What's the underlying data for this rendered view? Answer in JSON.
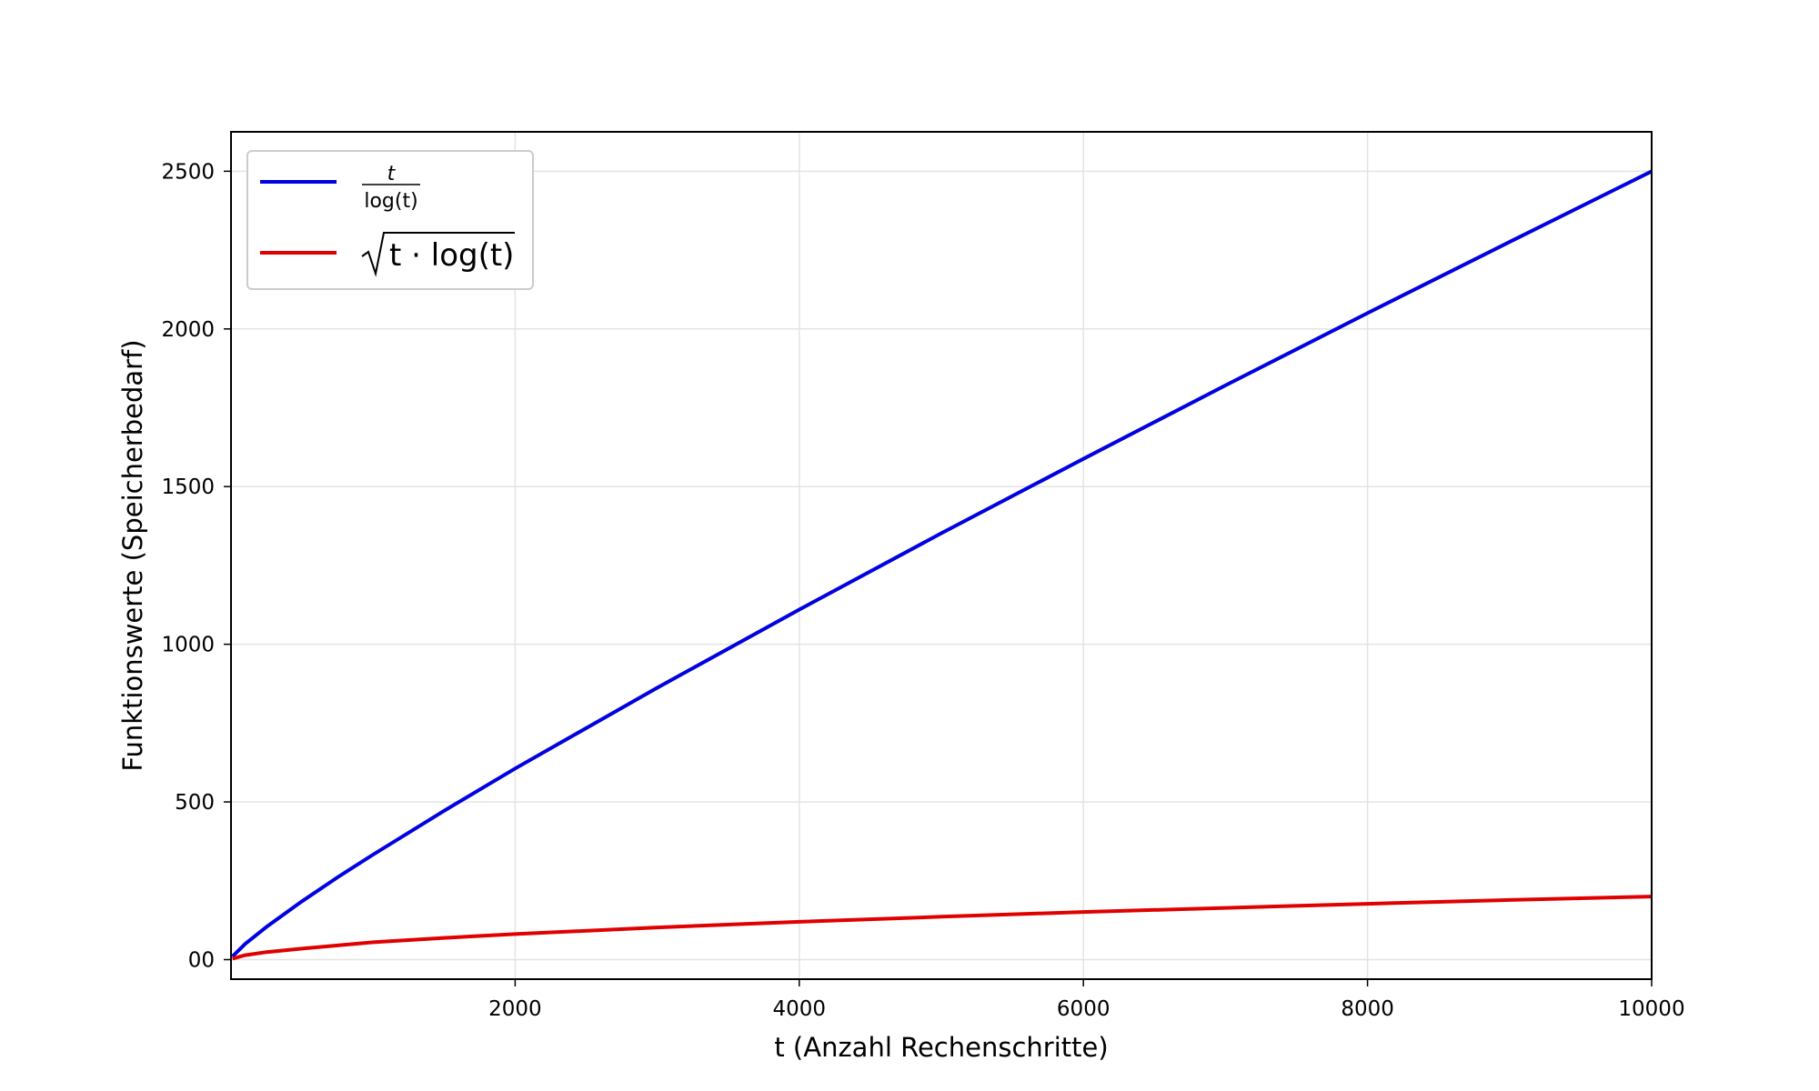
{
  "chart_data": {
    "type": "line",
    "title": "",
    "xlabel": "t (Anzahl Rechenschritte)",
    "ylabel": "Funktionswerte (Speicherbedarf)",
    "xlim": [
      0,
      10000
    ],
    "ylim": [
      -62,
      2625
    ],
    "xticks": [
      {
        "value": 2000,
        "label": "2000"
      },
      {
        "value": 4000,
        "label": "4000"
      },
      {
        "value": 6000,
        "label": "6000"
      },
      {
        "value": 8000,
        "label": "8000"
      },
      {
        "value": 10000,
        "label": "10000"
      }
    ],
    "yticks": [
      {
        "value": 0,
        "label": "00"
      },
      {
        "value": 500,
        "label": "500"
      },
      {
        "value": 1000,
        "label": "1000"
      },
      {
        "value": 1500,
        "label": "1500"
      },
      {
        "value": 2000,
        "label": "2000"
      },
      {
        "value": 2500,
        "label": "2500"
      }
    ],
    "grid": true,
    "legend_position": "top-left",
    "series": [
      {
        "name": "t / log(t)",
        "legend_numerator": "t",
        "legend_denominator": "log(t)",
        "color": "#0000e0",
        "x": [
          10,
          100,
          250,
          500,
          750,
          1000,
          1500,
          2000,
          3000,
          4000,
          5000,
          6000,
          7000,
          8000,
          9000,
          10000
        ],
        "y": [
          10,
          50,
          104,
          185,
          261,
          333,
          472,
          606,
          862,
          1110,
          1352,
          1588,
          1821,
          2050,
          2276,
          2500
        ]
      },
      {
        "name": "√(t · log(t))",
        "legend_label": "t · log(t)",
        "color": "#e00000",
        "x": [
          10,
          100,
          250,
          500,
          750,
          1000,
          1500,
          2000,
          3000,
          4000,
          5000,
          6000,
          7000,
          8000,
          9000,
          10000
        ],
        "y": [
          3,
          14,
          24,
          35,
          45,
          55,
          69,
          81,
          102,
          120,
          136,
          151,
          164,
          177,
          189,
          200
        ]
      }
    ]
  }
}
